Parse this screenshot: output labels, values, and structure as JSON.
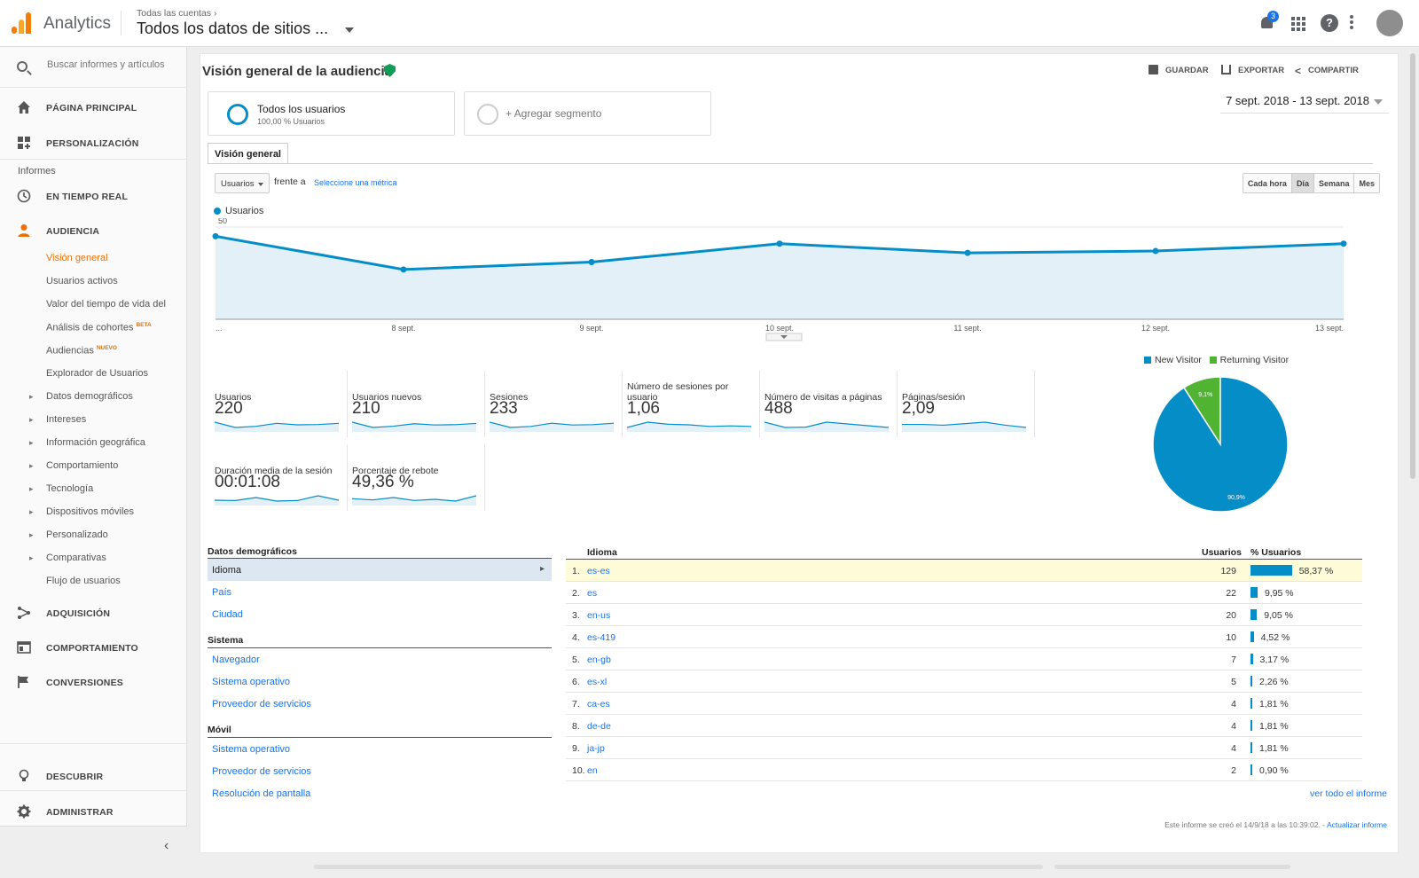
{
  "topbar": {
    "app_name": "Analytics",
    "breadcrumb": "Todas las cuentas",
    "breadcrumb_sep": "›",
    "property": "Todos los datos de sitios ...",
    "notification_count": "3"
  },
  "sidebar": {
    "search_placeholder": "Buscar informes y artículos",
    "home": "PÁGINA PRINCIPAL",
    "customization": "PERSONALIZACIÓN",
    "reports_label": "Informes",
    "realtime": "EN TIEMPO REAL",
    "audience": "AUDIENCIA",
    "audience_items": [
      {
        "label": "Visión general"
      },
      {
        "label": "Usuarios activos"
      },
      {
        "label": "Valor del tiempo de vida del"
      },
      {
        "label": "Análisis de cohortes",
        "tag": "BETA"
      },
      {
        "label": "Audiencias",
        "tag": "NUEVO"
      },
      {
        "label": "Explorador de Usuarios"
      },
      {
        "label": "Datos demográficos"
      },
      {
        "label": "Intereses"
      },
      {
        "label": "Información geográfica"
      },
      {
        "label": "Comportamiento"
      },
      {
        "label": "Tecnología"
      },
      {
        "label": "Dispositivos móviles"
      },
      {
        "label": "Personalizado"
      },
      {
        "label": "Comparativas"
      },
      {
        "label": "Flujo de usuarios"
      }
    ],
    "acquisition": "ADQUISICIÓN",
    "behavior": "COMPORTAMIENTO",
    "conversions": "CONVERSIONES",
    "discover": "DESCUBRIR",
    "admin": "ADMINISTRAR"
  },
  "main": {
    "title": "Visión general de la audiencia",
    "actions": {
      "save": "GUARDAR",
      "export": "EXPORTAR",
      "share": "COMPARTIR"
    },
    "segment": {
      "name": "Todos los usuarios",
      "sub": "100,00 % Usuarios"
    },
    "add_segment": "+ Agregar segmento",
    "date_range": "7 sept. 2018 - 13 sept. 2018",
    "tab": "Visión general",
    "metric_select": "Usuarios",
    "vs_label": "frente a",
    "vs_link": "Seleccione una métrica",
    "granularity": [
      "Cada hora",
      "Día",
      "Semana",
      "Mes"
    ],
    "granularity_selected": "Día",
    "legend_label": "Usuarios"
  },
  "chart_data": [
    {
      "type": "line",
      "series": [
        {
          "name": "Usuarios",
          "values": [
            45,
            27,
            31,
            41,
            36,
            37,
            41
          ]
        }
      ],
      "x": [
        "7 sept.",
        "8 sept.",
        "9 sept.",
        "10 sept.",
        "11 sept.",
        "12 sept.",
        "13 sept."
      ],
      "x_tick_labels": [
        "...",
        "8 sept.",
        "9 sept.",
        "10 sept.",
        "11 sept.",
        "12 sept.",
        "13 sept."
      ],
      "y_ticks": [
        25,
        50
      ],
      "ylim": [
        0,
        50
      ],
      "color": "#058dc7",
      "fill": "#e3f0f8"
    },
    {
      "type": "pie",
      "slices": [
        {
          "name": "New Visitor",
          "value": 90.9,
          "label": "90,9%",
          "color": "#058dc7"
        },
        {
          "name": "Returning Visitor",
          "value": 9.1,
          "label": "9,1%",
          "color": "#50b432"
        }
      ],
      "legend_placement": "top"
    }
  ],
  "scorecards": [
    {
      "label": "Usuarios",
      "value": "220",
      "spark": [
        45,
        27,
        31,
        41,
        36,
        37,
        41
      ]
    },
    {
      "label": "Usuarios nuevos",
      "value": "210",
      "spark": [
        43,
        26,
        30,
        38,
        34,
        35,
        39
      ]
    },
    {
      "label": "Sesiones",
      "value": "233",
      "spark": [
        45,
        30,
        33,
        42,
        37,
        38,
        42
      ]
    },
    {
      "label": "Número de sesiones por usuario",
      "value": "1,06",
      "spark": [
        1.0,
        1.1,
        1.06,
        1.05,
        1.02,
        1.03,
        1.02
      ]
    },
    {
      "label": "Número de visitas a páginas",
      "value": "488",
      "spark": [
        90,
        60,
        62,
        90,
        80,
        70,
        60
      ]
    },
    {
      "label": "Páginas/sesión",
      "value": "2,09",
      "spark": [
        2.0,
        2.0,
        1.9,
        2.1,
        2.3,
        1.9,
        1.6
      ]
    },
    {
      "label": "Duración media de la sesión",
      "value": "00:01:08",
      "spark": [
        60,
        58,
        75,
        55,
        58,
        85,
        60
      ]
    },
    {
      "label": "Porcentaje de rebote",
      "value": "49,36 %",
      "spark": [
        50,
        48,
        52,
        47,
        49,
        46,
        55
      ]
    }
  ],
  "demographics": {
    "header": "Datos demográficos",
    "items": [
      "Idioma",
      "País",
      "Ciudad"
    ],
    "selected": "Idioma",
    "system_header": "Sistema",
    "system_items": [
      "Navegador",
      "Sistema operativo",
      "Proveedor de servicios"
    ],
    "mobile_header": "Móvil",
    "mobile_items": [
      "Sistema operativo",
      "Proveedor de servicios",
      "Resolución de pantalla"
    ]
  },
  "language_table": {
    "col_language": "Idioma",
    "col_users": "Usuarios",
    "col_pct": "% Usuarios",
    "rows": [
      {
        "idx": "1.",
        "code": "es-es",
        "users": "129",
        "pct": "58,37 %",
        "pct_value": 58.37
      },
      {
        "idx": "2.",
        "code": "es",
        "users": "22",
        "pct": "9,95 %",
        "pct_value": 9.95
      },
      {
        "idx": "3.",
        "code": "en-us",
        "users": "20",
        "pct": "9,05 %",
        "pct_value": 9.05
      },
      {
        "idx": "4.",
        "code": "es-419",
        "users": "10",
        "pct": "4,52 %",
        "pct_value": 4.52
      },
      {
        "idx": "5.",
        "code": "en-gb",
        "users": "7",
        "pct": "3,17 %",
        "pct_value": 3.17
      },
      {
        "idx": "6.",
        "code": "es-xl",
        "users": "5",
        "pct": "2,26 %",
        "pct_value": 2.26
      },
      {
        "idx": "7.",
        "code": "ca-es",
        "users": "4",
        "pct": "1,81 %",
        "pct_value": 1.81
      },
      {
        "idx": "8.",
        "code": "de-de",
        "users": "4",
        "pct": "1,81 %",
        "pct_value": 1.81
      },
      {
        "idx": "9.",
        "code": "ja-jp",
        "users": "4",
        "pct": "1,81 %",
        "pct_value": 1.81
      },
      {
        "idx": "10.",
        "code": "en",
        "users": "2",
        "pct": "0,90 %",
        "pct_value": 0.9
      }
    ],
    "full_report": "ver todo el informe"
  },
  "footer": {
    "created": "Este informe se creó el 14/9/18 a las 10:39:02. -",
    "refresh": "Actualizar informe"
  }
}
